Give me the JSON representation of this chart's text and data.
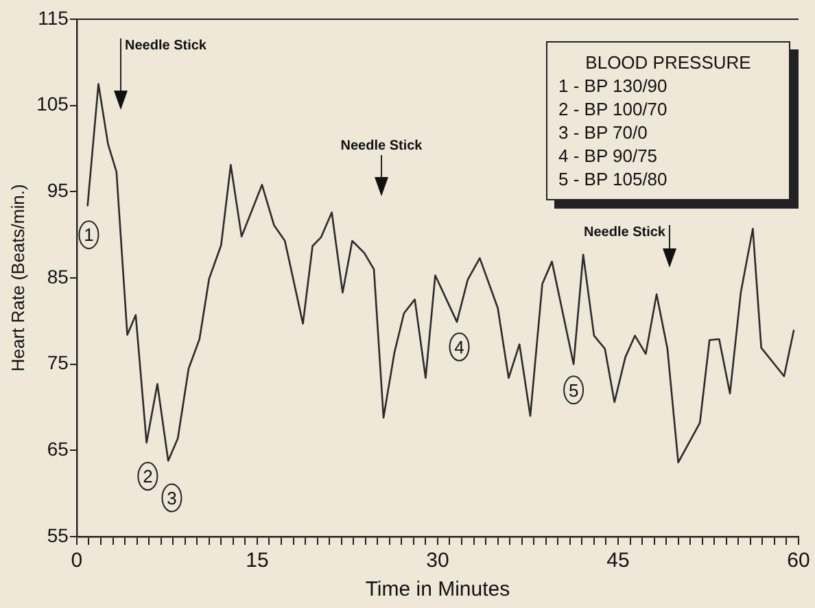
{
  "chart_data": {
    "type": "line",
    "xlabel": "Time in Minutes",
    "ylabel": "Heart Rate (Beats/min.)",
    "color": "#2b2b2b",
    "marker": "none",
    "x": [
      0.9,
      1.8,
      2.6,
      3.3,
      4.2,
      4.9,
      5.8,
      6.7,
      7.6,
      8.4,
      9.3,
      10.2,
      11.0,
      12.0,
      12.8,
      13.7,
      15.4,
      16.4,
      17.3,
      18.8,
      19.6,
      20.3,
      21.2,
      22.1,
      22.9,
      23.9,
      24.7,
      25.5,
      26.4,
      27.2,
      28.1,
      29.0,
      29.8,
      31.6,
      32.5,
      33.5,
      35.0,
      35.9,
      36.8,
      37.7,
      38.7,
      39.5,
      41.3,
      42.1,
      43.0,
      43.9,
      44.7,
      45.6,
      46.4,
      47.3,
      48.2,
      49.1,
      50.0,
      51.8,
      52.6,
      53.4,
      54.3,
      55.2,
      56.2,
      56.9,
      58.8,
      59.6
    ],
    "values": [
      93.4,
      107.5,
      100.5,
      97.3,
      78.4,
      80.7,
      65.9,
      72.7,
      63.8,
      66.4,
      74.5,
      77.9,
      84.9,
      88.8,
      98.1,
      89.8,
      95.8,
      91.1,
      89.3,
      79.7,
      88.7,
      89.7,
      92.6,
      83.3,
      89.3,
      87.9,
      86.0,
      68.8,
      76.3,
      80.9,
      82.5,
      73.4,
      85.3,
      79.9,
      84.8,
      87.3,
      81.5,
      73.4,
      77.3,
      69.0,
      84.3,
      86.9,
      75.0,
      87.7,
      78.3,
      76.8,
      70.6,
      75.8,
      78.3,
      76.2,
      83.1,
      76.8,
      63.6,
      68.2,
      77.8,
      77.9,
      71.6,
      83.3,
      90.7,
      76.9,
      73.6,
      78.9
    ],
    "xlim": [
      0,
      60
    ],
    "ylim": [
      55,
      115
    ],
    "xticks": [
      0,
      {
        "value": 1,
        "label": null
      },
      {
        "value": 2,
        "label": null
      },
      {
        "value": 3,
        "label": null
      },
      {
        "value": 4,
        "label": null
      },
      {
        "value": 5,
        "label": null
      },
      {
        "value": 6,
        "label": null
      },
      {
        "value": 7,
        "label": null
      },
      {
        "value": 8,
        "label": null
      },
      {
        "value": 9,
        "label": null
      },
      {
        "value": 10,
        "label": null
      },
      {
        "value": 11,
        "label": null
      },
      {
        "value": 12,
        "label": null
      },
      {
        "value": 13,
        "label": null
      },
      {
        "value": 14,
        "label": null
      },
      15,
      {
        "value": 16,
        "label": null
      },
      {
        "value": 17,
        "label": null
      },
      {
        "value": 18,
        "label": null
      },
      {
        "value": 19,
        "label": null
      },
      {
        "value": 20,
        "label": null
      },
      {
        "value": 21,
        "label": null
      },
      {
        "value": 22,
        "label": null
      },
      {
        "value": 23,
        "label": null
      },
      {
        "value": 24,
        "label": null
      },
      {
        "value": 25,
        "label": null
      },
      {
        "value": 26,
        "label": null
      },
      {
        "value": 27,
        "label": null
      },
      {
        "value": 28,
        "label": null
      },
      {
        "value": 29,
        "label": null
      },
      30,
      {
        "value": 31,
        "label": null
      },
      {
        "value": 32,
        "label": null
      },
      {
        "value": 33,
        "label": null
      },
      {
        "value": 34,
        "label": null
      },
      {
        "value": 35,
        "label": null
      },
      {
        "value": 36,
        "label": null
      },
      {
        "value": 37,
        "label": null
      },
      {
        "value": 38,
        "label": null
      },
      {
        "value": 39,
        "label": null
      },
      {
        "value": 40,
        "label": null
      },
      {
        "value": 41,
        "label": null
      },
      {
        "value": 42,
        "label": null
      },
      {
        "value": 43,
        "label": null
      },
      {
        "value": 44,
        "label": null
      },
      45,
      {
        "value": 46,
        "label": null
      },
      {
        "value": 47,
        "label": null
      },
      {
        "value": 48,
        "label": null
      },
      {
        "value": 49,
        "label": null
      },
      {
        "value": 50,
        "label": null
      },
      {
        "value": 51,
        "label": null
      },
      {
        "value": 52,
        "label": null
      },
      {
        "value": 53,
        "label": null
      },
      {
        "value": 54,
        "label": null
      },
      {
        "value": 55,
        "label": null
      },
      {
        "value": 56,
        "label": null
      },
      {
        "value": 57,
        "label": null
      },
      {
        "value": 58,
        "label": null
      },
      {
        "value": 59,
        "label": null
      },
      60
    ],
    "yticks": [
      55,
      65,
      75,
      85,
      95,
      105,
      115
    ],
    "annotations": [
      "Needle Stick",
      "Needle Stick",
      "Needle Stick",
      {
        "text": "1",
        "x": 1.0,
        "y": 90
      },
      {
        "text": "2",
        "x": 5.9,
        "y": 62
      },
      {
        "text": "3",
        "x": 7.9,
        "y": 59.5
      },
      {
        "text": "4",
        "x": 31.8,
        "y": 77
      },
      {
        "text": "5",
        "x": 41.3,
        "y": 72
      },
      "BLOOD PRESSURE",
      "1 - BP 130/90",
      "2 - BP 100/70",
      "3 - BP 70/0",
      "4 - BP 90/75",
      "5 - BP 105/80"
    ]
  }
}
